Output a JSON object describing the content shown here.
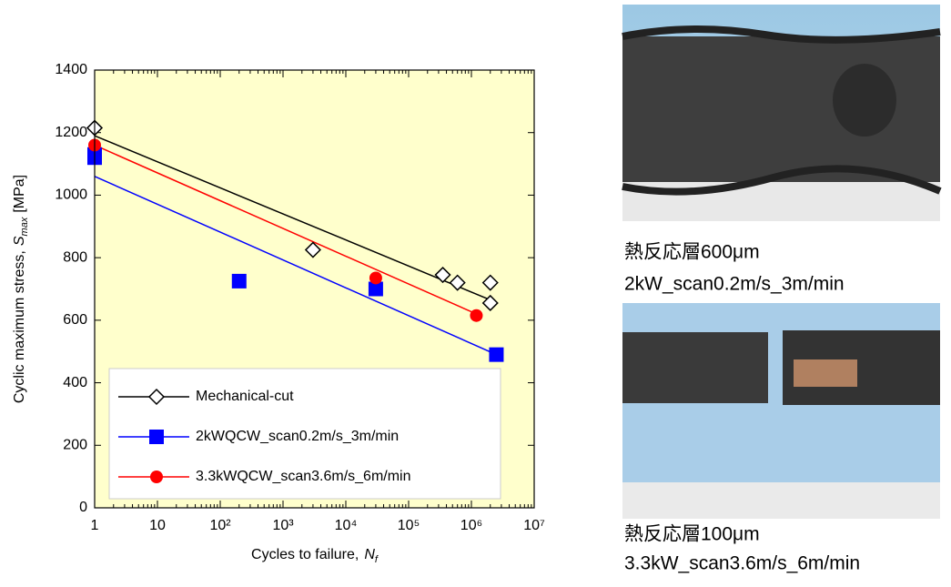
{
  "chart_data": {
    "type": "scatter",
    "xlabel": {
      "text": "Cycles to failure,",
      "symbol": "N",
      "subscript": "f"
    },
    "ylabel": {
      "text": "Cyclic maximum stress,",
      "symbol": "S",
      "subscript": "max",
      "unit": "[MPa]"
    },
    "xscale": "log",
    "xlim": [
      1,
      10000000
    ],
    "xticks": [
      1,
      10,
      {
        "value": 100,
        "label": "10²"
      },
      {
        "value": 1000,
        "label": "10³"
      },
      {
        "value": 10000,
        "label": "10⁴"
      },
      {
        "value": 100000,
        "label": "10⁵"
      },
      {
        "value": 1000000,
        "label": "10⁶"
      },
      {
        "value": 10000000,
        "label": "10⁷"
      }
    ],
    "ylim": [
      0,
      1400
    ],
    "yticks": [
      0,
      200,
      400,
      600,
      800,
      1000,
      1200,
      1400
    ],
    "background": "#ffffcc",
    "legend": "lower left",
    "series": [
      {
        "name": "Mechanical-cut",
        "color": "#000000",
        "marker": "diamond",
        "x": [
          1,
          3000,
          350000,
          600000,
          2000000,
          2000000
        ],
        "values": [
          1215,
          825,
          745,
          720,
          720,
          655
        ],
        "fit": {
          "x": [
            1,
            2000000
          ],
          "values": [
            1190,
            665
          ]
        }
      },
      {
        "name": "2kWQCW_scan0.2m/s_3m/min",
        "color": "#0000ff",
        "marker": "square",
        "x": [
          1,
          1,
          200,
          30000,
          2500000
        ],
        "values": [
          1130,
          1120,
          725,
          700,
          490
        ],
        "fit": {
          "x": [
            1,
            2500000
          ],
          "values": [
            1060,
            490
          ]
        }
      },
      {
        "name": "3.3kWQCW_scan3.6m/s_6m/min",
        "color": "#ff0000",
        "marker": "circle",
        "x": [
          1,
          30000,
          1200000
        ],
        "values": [
          1160,
          735,
          615
        ],
        "fit": {
          "x": [
            1,
            1200000
          ],
          "values": [
            1160,
            620
          ]
        }
      }
    ]
  },
  "photos": [
    {
      "caption": [
        "熱反応層600μm",
        "2kW_scan0.2m/s_3m/min"
      ]
    },
    {
      "caption": [
        "熱反応層100μm",
        "3.3kW_scan3.6m/s_6m/min"
      ]
    }
  ]
}
